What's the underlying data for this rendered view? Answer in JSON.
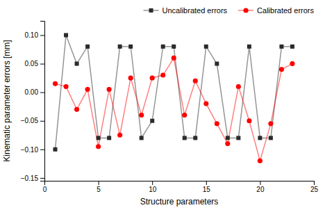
{
  "chart_data": {
    "type": "line",
    "xlabel": "Structure parameters",
    "ylabel": "Kinematic parameter errors [mm]",
    "x": [
      1,
      2,
      3,
      4,
      5,
      6,
      7,
      8,
      9,
      10,
      11,
      12,
      13,
      14,
      15,
      16,
      17,
      18,
      19,
      20,
      21,
      22,
      23
    ],
    "series": [
      {
        "name": "Uncalibrated errors",
        "color": "#2b2b2b",
        "marker": "square",
        "values": [
          -0.1,
          0.1,
          0.05,
          0.08,
          -0.08,
          -0.08,
          0.08,
          0.08,
          -0.08,
          -0.05,
          0.08,
          0.08,
          -0.08,
          -0.08,
          0.08,
          0.05,
          -0.08,
          -0.08,
          0.08,
          -0.08,
          -0.08,
          0.08,
          0.08
        ]
      },
      {
        "name": "Calibrated errors",
        "color": "#ff0000",
        "marker": "circle",
        "values": [
          0.015,
          0.01,
          -0.03,
          0.005,
          -0.095,
          0.005,
          -0.075,
          0.025,
          -0.04,
          0.025,
          0.03,
          0.06,
          -0.04,
          0.02,
          -0.02,
          -0.055,
          -0.09,
          0.01,
          -0.05,
          -0.12,
          -0.055,
          0.04,
          0.05
        ]
      }
    ],
    "xlim": [
      0,
      25
    ],
    "ylim": [
      -0.155,
      0.125
    ],
    "xticks": [
      0,
      5,
      10,
      15,
      20,
      25
    ],
    "yticks": [
      {
        "value": -0.15,
        "label": "−0.15"
      },
      {
        "value": -0.1,
        "label": "−0.10"
      },
      {
        "value": -0.05,
        "label": "−0.05"
      },
      {
        "value": 0.0,
        "label": "0.00"
      },
      0.05,
      {
        "value": 0.1,
        "label": "0.10"
      }
    ],
    "legend": "upper right",
    "grid": false
  }
}
